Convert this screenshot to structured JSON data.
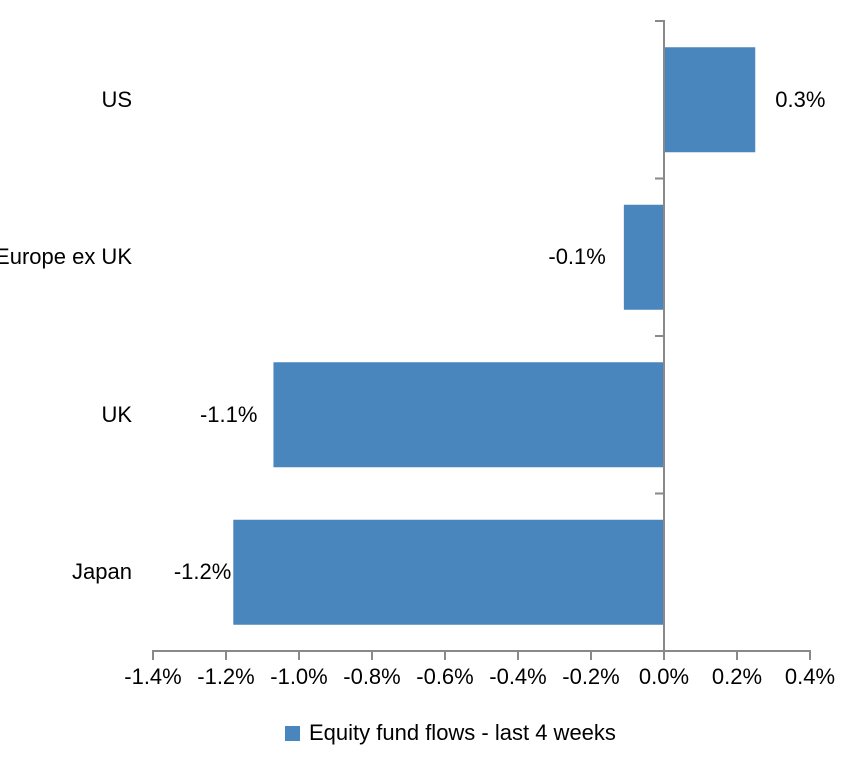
{
  "chart_data": {
    "type": "bar",
    "orientation": "horizontal",
    "title": "",
    "categories": [
      "US",
      "Europe ex UK",
      "UK",
      "Japan"
    ],
    "series": [
      {
        "name": "Equity fund flows - last 4 weeks",
        "values": [
          0.25,
          -0.11,
          -1.07,
          -1.18
        ],
        "data_labels": [
          "0.3%",
          "-0.1%",
          "-1.1%",
          "-1.2%"
        ]
      }
    ],
    "value_axis": {
      "min": -1.4,
      "max": 0.4,
      "step": 0.2,
      "tick_labels": [
        "-1.4%",
        "-1.2%",
        "-1.0%",
        "-0.8%",
        "-0.6%",
        "-0.4%",
        "-0.2%",
        "0.0%",
        "0.2%",
        "0.4%"
      ],
      "unit": "percent"
    },
    "grid": false,
    "legend": {
      "position": "bottom",
      "items": [
        {
          "label": "Equity fund flows - last 4 weeks",
          "color": "#4A86BE"
        }
      ]
    },
    "colors": {
      "bar": "#4A86BE",
      "axis": "#898989",
      "text": "#000000",
      "background": "#FFFFFF"
    }
  }
}
